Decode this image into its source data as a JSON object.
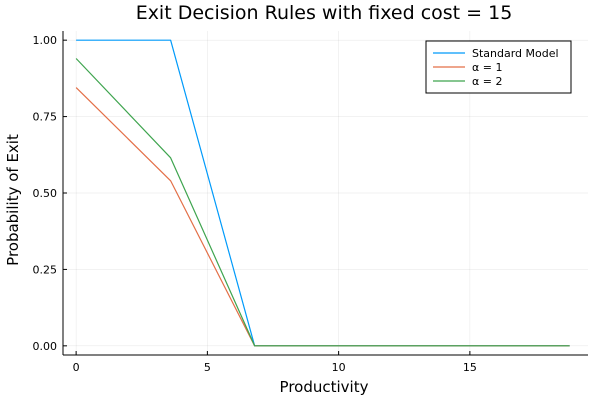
{
  "chart_data": {
    "type": "line",
    "title": "Exit Decision Rules with fixed cost = 15",
    "xlabel": "Productivity",
    "ylabel": "Probability of Exit",
    "xlim": [
      -0.5,
      19.5
    ],
    "ylim": [
      -0.03,
      1.03
    ],
    "xticks": [
      0,
      5,
      10,
      15
    ],
    "xtick_labels": [
      "0",
      "5",
      "10",
      "15"
    ],
    "yticks": [
      0.0,
      0.25,
      0.5,
      0.75,
      1.0
    ],
    "ytick_labels": [
      "0.00",
      "0.25",
      "0.50",
      "0.75",
      "1.00"
    ],
    "grid": true,
    "legend_position": "top-right",
    "series": [
      {
        "name": "Standard Model",
        "color": "#009AFA",
        "x": [
          0,
          3.6,
          6.8,
          18.8
        ],
        "y": [
          1.0,
          1.0,
          0.0,
          0.0
        ]
      },
      {
        "name": "α = 1",
        "color": "#E36F47",
        "x": [
          0,
          3.6,
          6.8,
          18.8
        ],
        "y": [
          0.845,
          0.54,
          0.0,
          0.0
        ]
      },
      {
        "name": "α = 2",
        "color": "#3EA44E",
        "x": [
          0,
          3.6,
          6.8,
          18.8
        ],
        "y": [
          0.94,
          0.615,
          0.0,
          0.0
        ]
      }
    ]
  }
}
